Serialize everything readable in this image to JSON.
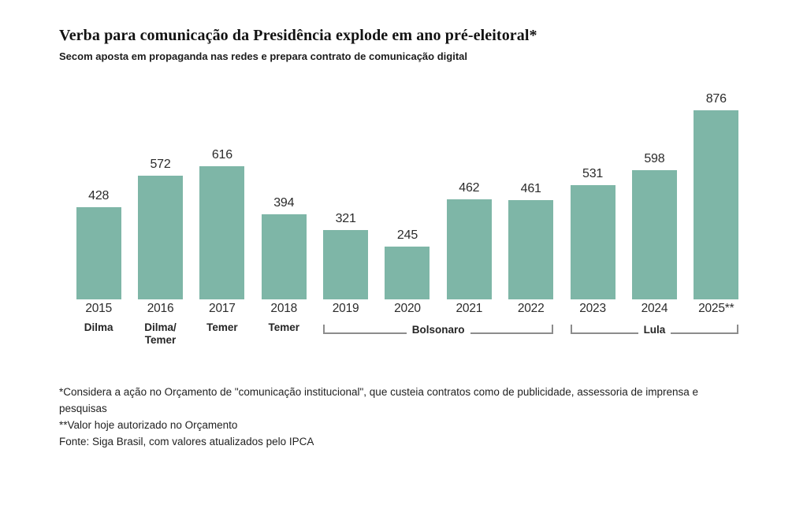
{
  "chart_data": {
    "type": "bar",
    "title": "Verba para comunicação da Presidência explode em ano pré-eleitoral*",
    "subtitle": "Secom aposta em propaganda nas redes e prepara contrato de comunicação digital",
    "categories": [
      "2015",
      "2016",
      "2017",
      "2018",
      "2019",
      "2020",
      "2021",
      "2022",
      "2023",
      "2024",
      "2025**"
    ],
    "values": [
      428,
      572,
      616,
      394,
      321,
      245,
      462,
      461,
      531,
      598,
      876
    ],
    "value_labels_shown": true,
    "xlabel": "",
    "ylabel": "",
    "ylim": [
      0,
      876
    ],
    "grid": false,
    "legend_position": "none",
    "bar_color": "#7eb6a7",
    "value_label_color": "#2b2b2b",
    "axis_label_color": "#2b2b2b",
    "bracket_color": "#8c8c8c",
    "president_annotations": [
      {
        "label": "Dilma",
        "display": "Dilma",
        "from": 0,
        "to": 0,
        "style": "text"
      },
      {
        "label": "Dilma/Temer",
        "display": "Dilma/\nTemer",
        "from": 1,
        "to": 1,
        "style": "text"
      },
      {
        "label": "Temer",
        "display": "Temer",
        "from": 2,
        "to": 2,
        "style": "text"
      },
      {
        "label": "Temer",
        "display": "Temer",
        "from": 3,
        "to": 3,
        "style": "text"
      },
      {
        "label": "Bolsonaro",
        "display": "Bolsonaro",
        "from": 4,
        "to": 7,
        "style": "bracket"
      },
      {
        "label": "Lula",
        "display": "Lula",
        "from": 8,
        "to": 10,
        "style": "bracket"
      }
    ]
  },
  "footnotes": {
    "note1": "*Considera a ação no Orçamento de \"comunicação institucional\", que custeia contratos como de publicidade, assessoria de imprensa e pesquisas",
    "note2": "**Valor hoje autorizado no Orçamento",
    "note3": "Fonte: Siga Brasil, com valores atualizados pelo IPCA"
  }
}
